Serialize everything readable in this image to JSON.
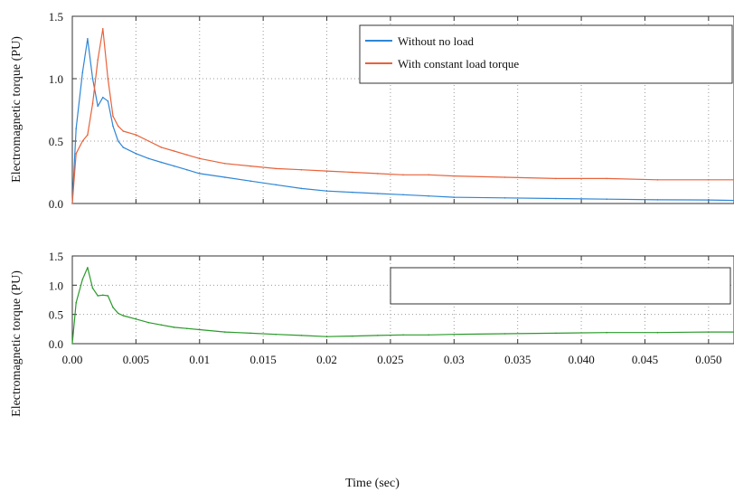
{
  "chart_data": [
    {
      "type": "line",
      "ylabel": "Electromagnetic torque (PU)",
      "xlabel": "",
      "ylim": [
        0,
        1.5
      ],
      "yticks": [
        "0.0",
        "0.5",
        "1.0",
        "1.5"
      ],
      "legend": "top-right",
      "grid": true,
      "series": [
        {
          "name": "Without no load",
          "color": "#2e86d6",
          "x": [
            0,
            0.0003,
            0.0008,
            0.0012,
            0.0016,
            0.002,
            0.0024,
            0.0028,
            0.0032,
            0.0036,
            0.004,
            0.005,
            0.006,
            0.007,
            0.008,
            0.009,
            0.01,
            0.012,
            0.014,
            0.016,
            0.018,
            0.02,
            0.022,
            0.024,
            0.026,
            0.028,
            0.03,
            0.034,
            0.038,
            0.042,
            0.046,
            0.05,
            0.052
          ],
          "values": [
            0.0,
            0.6,
            1.05,
            1.32,
            1.0,
            0.78,
            0.85,
            0.82,
            0.62,
            0.5,
            0.45,
            0.4,
            0.36,
            0.33,
            0.3,
            0.27,
            0.24,
            0.21,
            0.18,
            0.15,
            0.12,
            0.1,
            0.09,
            0.08,
            0.07,
            0.06,
            0.05,
            0.045,
            0.04,
            0.035,
            0.03,
            0.028,
            0.025
          ]
        },
        {
          "name": "With constant load torque",
          "color": "#e8623a",
          "x": [
            0,
            0.0003,
            0.0008,
            0.0012,
            0.0016,
            0.002,
            0.0024,
            0.0028,
            0.0032,
            0.0036,
            0.004,
            0.005,
            0.006,
            0.007,
            0.008,
            0.009,
            0.01,
            0.012,
            0.014,
            0.016,
            0.018,
            0.02,
            0.022,
            0.024,
            0.026,
            0.028,
            0.03,
            0.034,
            0.038,
            0.042,
            0.046,
            0.05,
            0.052
          ],
          "values": [
            0.0,
            0.4,
            0.5,
            0.55,
            0.8,
            1.15,
            1.4,
            1.0,
            0.7,
            0.62,
            0.58,
            0.55,
            0.5,
            0.45,
            0.42,
            0.39,
            0.36,
            0.32,
            0.3,
            0.28,
            0.27,
            0.26,
            0.25,
            0.24,
            0.23,
            0.23,
            0.22,
            0.21,
            0.2,
            0.2,
            0.19,
            0.19,
            0.19
          ]
        }
      ]
    },
    {
      "type": "line",
      "ylabel": "Electromagnetic torque (PU)",
      "xlabel": "Time (sec)",
      "ylim": [
        0,
        1.5
      ],
      "yticks": [
        "0.0",
        "0.5",
        "1.0",
        "1.5"
      ],
      "xticks": [
        "0.00",
        "0.005",
        "0.01",
        "0.015",
        "0.02",
        "0.025",
        "0.03",
        "0.035",
        "0.040",
        "0.045",
        "0.050"
      ],
      "grid": true,
      "series": [
        {
          "color": "#2a9a2a",
          "x": [
            0,
            0.0003,
            0.0008,
            0.0012,
            0.0016,
            0.002,
            0.0024,
            0.0028,
            0.0032,
            0.0036,
            0.004,
            0.005,
            0.006,
            0.007,
            0.008,
            0.009,
            0.01,
            0.012,
            0.014,
            0.016,
            0.018,
            0.02,
            0.022,
            0.024,
            0.026,
            0.028,
            0.03,
            0.034,
            0.038,
            0.042,
            0.046,
            0.05,
            0.052
          ],
          "values": [
            0.0,
            0.7,
            1.1,
            1.3,
            0.95,
            0.82,
            0.83,
            0.82,
            0.62,
            0.52,
            0.48,
            0.42,
            0.36,
            0.32,
            0.28,
            0.26,
            0.24,
            0.2,
            0.18,
            0.16,
            0.14,
            0.12,
            0.13,
            0.14,
            0.15,
            0.15,
            0.16,
            0.17,
            0.18,
            0.19,
            0.19,
            0.2,
            0.2
          ]
        }
      ]
    }
  ]
}
